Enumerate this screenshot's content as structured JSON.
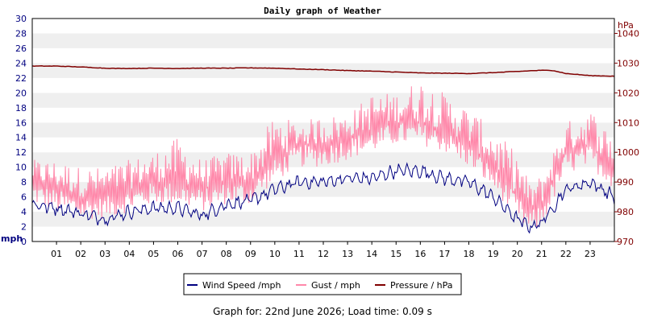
{
  "chart_data": {
    "type": "line",
    "title": "Daily graph of Weather",
    "x_tick_labels": [
      "01",
      "02",
      "03",
      "04",
      "05",
      "06",
      "07",
      "08",
      "09",
      "10",
      "11",
      "12",
      "13",
      "14",
      "15",
      "16",
      "17",
      "18",
      "19",
      "20",
      "21",
      "22",
      "23"
    ],
    "x_range_hours": [
      0,
      24
    ],
    "left_axis": {
      "label": "mph",
      "range": [
        0,
        30
      ],
      "ticks": [
        0,
        2,
        4,
        6,
        8,
        10,
        12,
        14,
        16,
        18,
        20,
        22,
        24,
        26,
        28,
        30
      ]
    },
    "right_axis": {
      "label": "hPa",
      "range": [
        970,
        1045
      ],
      "ticks": [
        970,
        980,
        990,
        1000,
        1010,
        1020,
        1030,
        1040
      ]
    },
    "grid": "horizontal bands",
    "legend_position": "bottom",
    "series": [
      {
        "name": "Wind Speed /mph",
        "axis": "left",
        "color": "#000080",
        "x": [
          0,
          1,
          2,
          3,
          4,
          5,
          6,
          7,
          8,
          9,
          10,
          11,
          12,
          13,
          14,
          15,
          16,
          17,
          18,
          19,
          20,
          20.5,
          21,
          22,
          23,
          24
        ],
        "values": [
          5,
          4.5,
          3.8,
          3,
          4,
          4.5,
          4.5,
          3.5,
          5,
          5.5,
          7,
          8,
          8,
          8.5,
          8.5,
          9.5,
          9.5,
          8.5,
          8,
          6,
          3,
          2,
          2.5,
          7,
          8,
          6
        ]
      },
      {
        "name": "Gust / mph",
        "axis": "left",
        "color": "#ff88aa",
        "x": [
          0,
          1,
          2,
          3,
          4,
          5,
          6,
          7,
          8,
          9,
          10,
          11,
          12,
          13,
          14,
          15,
          16,
          17,
          18,
          19,
          20,
          20.5,
          21,
          22,
          23,
          24
        ],
        "values": [
          8,
          7,
          6,
          6,
          7,
          8,
          8,
          7,
          8,
          8,
          11,
          13,
          13,
          14,
          15,
          16,
          16,
          15,
          13,
          10,
          6,
          4,
          5,
          12,
          13,
          10
        ],
        "max_values": [
          11,
          11,
          10,
          10,
          11,
          12,
          14,
          11,
          12,
          12,
          17,
          16,
          17,
          17,
          20,
          20,
          22,
          20,
          18,
          15,
          12,
          8,
          9,
          16,
          18,
          14
        ]
      },
      {
        "name": "Pressure / hPa",
        "axis": "right",
        "color": "#800000",
        "x": [
          0,
          1,
          2,
          3,
          3.5,
          4,
          5,
          6,
          7,
          8,
          9,
          10,
          11,
          12,
          13,
          14,
          15,
          16,
          17,
          18,
          19,
          20,
          21,
          21.5,
          22,
          23,
          24
        ],
        "values": [
          1029,
          1029,
          1028.7,
          1028.3,
          1028.2,
          1028.2,
          1028.3,
          1028.2,
          1028.3,
          1028.3,
          1028.4,
          1028.3,
          1028,
          1027.8,
          1027.5,
          1027.3,
          1027,
          1026.7,
          1026.6,
          1026.5,
          1026.8,
          1027.2,
          1027.6,
          1027.5,
          1026.5,
          1025.8,
          1025.6
        ]
      }
    ]
  },
  "footer": "Graph for: 22nd June 2026; Load time: 0.09 s"
}
